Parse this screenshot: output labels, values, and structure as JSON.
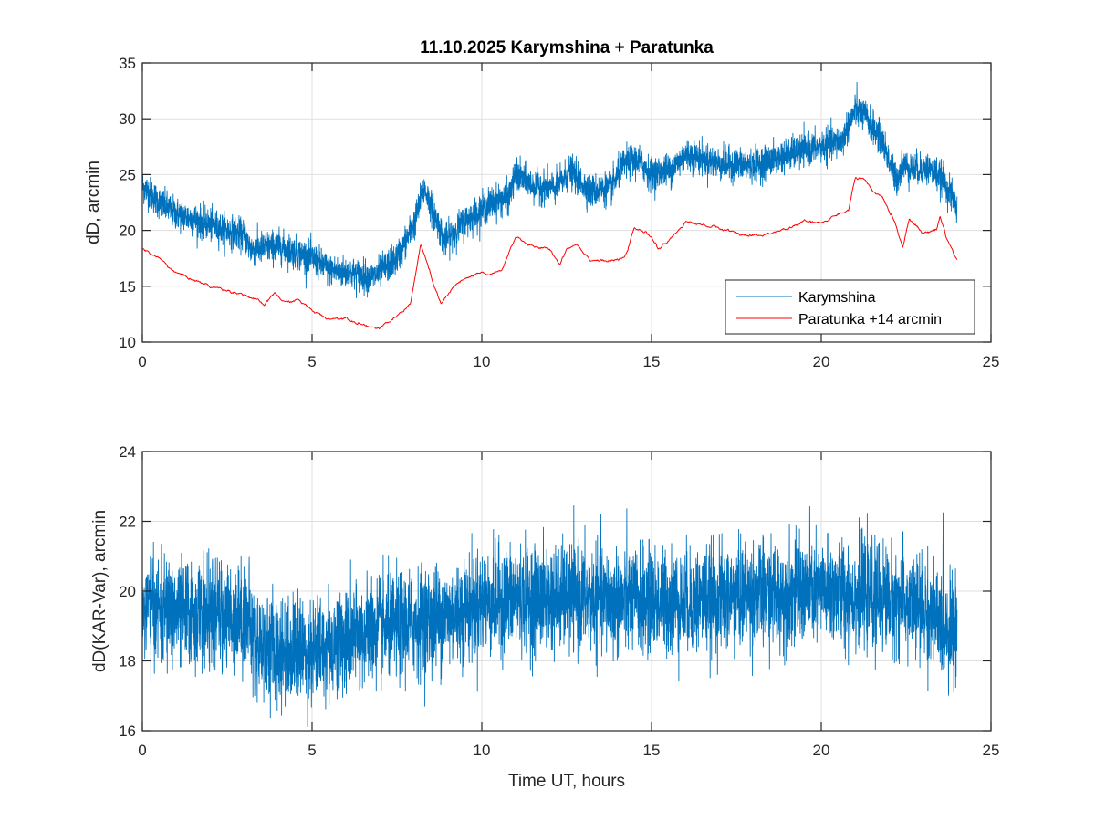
{
  "chart_data": [
    {
      "type": "line",
      "title": "11.10.2025  Karymshina + Paratunka",
      "xlabel": "",
      "ylabel": "dD, arcmin",
      "xlim": [
        0,
        25
      ],
      "ylim": [
        10,
        35
      ],
      "xticks": [
        "0",
        "5",
        "10",
        "15",
        "20",
        "25"
      ],
      "yticks": [
        "10",
        "15",
        "20",
        "25",
        "30",
        "35"
      ],
      "grid": true,
      "legend_position": "bottom-right",
      "series": [
        {
          "name": "Karymshina",
          "color": "#0072BD",
          "noise_amplitude": 1.3,
          "x": [
            0,
            0.5,
            1,
            2,
            3,
            3.2,
            4,
            5,
            5.5,
            6,
            6.8,
            7.5,
            8.0,
            8.3,
            8.6,
            8.9,
            9.5,
            10.3,
            10.8,
            11.0,
            11.5,
            12.2,
            12.6,
            13.2,
            13.8,
            14.2,
            14.6,
            15.0,
            15.6,
            16.0,
            17.0,
            18.0,
            19.0,
            20.0,
            20.6,
            21.0,
            21.3,
            21.8,
            22.2,
            22.4,
            22.8,
            23.2,
            23.6,
            24.0
          ],
          "y": [
            24.0,
            22.5,
            21.5,
            20.5,
            19.5,
            18.3,
            18.6,
            17.5,
            16.5,
            16.2,
            15.8,
            17.5,
            20.5,
            23.8,
            21.5,
            19.0,
            20.8,
            22.5,
            23.0,
            25.0,
            24.0,
            23.8,
            25.3,
            23.5,
            23.8,
            26.0,
            26.3,
            25.0,
            25.5,
            26.8,
            26.0,
            25.8,
            26.8,
            27.5,
            28.0,
            30.8,
            30.2,
            28.0,
            24.5,
            25.8,
            25.5,
            25.5,
            24.5,
            22.0
          ]
        },
        {
          "name": "Paratunka +14 arcmin",
          "color": "#FF0000",
          "noise_amplitude": 0.12,
          "x": [
            0,
            0.5,
            1.0,
            2.0,
            3.0,
            3.6,
            3.9,
            4.2,
            4.6,
            5.0,
            5.5,
            6.0,
            6.5,
            7.0,
            7.5,
            7.9,
            8.2,
            8.4,
            8.6,
            8.8,
            9.2,
            9.5,
            10.0,
            10.3,
            10.6,
            11.0,
            11.5,
            12.0,
            12.3,
            12.5,
            12.8,
            13.2,
            13.8,
            14.2,
            14.5,
            15.0,
            15.2,
            15.5,
            16.0,
            17.0,
            17.5,
            18.0,
            19.0,
            19.5,
            20.0,
            20.5,
            20.8,
            21.0,
            21.3,
            21.5,
            21.8,
            22.2,
            22.4,
            22.6,
            23.0,
            23.4,
            23.5,
            23.7,
            24.0
          ],
          "y": [
            18.3,
            17.5,
            16.2,
            15.0,
            14.3,
            13.3,
            14.4,
            13.5,
            13.8,
            12.8,
            12.1,
            12.2,
            11.6,
            11.2,
            12.3,
            13.5,
            18.7,
            17.0,
            14.8,
            13.5,
            15.0,
            15.6,
            16.2,
            16.0,
            16.5,
            19.5,
            18.5,
            18.3,
            17.0,
            18.4,
            18.8,
            17.4,
            17.2,
            17.5,
            20.2,
            19.5,
            18.3,
            19.0,
            20.8,
            20.2,
            19.8,
            19.4,
            20.1,
            20.8,
            20.6,
            21.5,
            21.8,
            24.7,
            24.5,
            23.4,
            23.0,
            20.5,
            18.5,
            21.2,
            19.7,
            20.1,
            21.3,
            19.3,
            17.4
          ]
        }
      ]
    },
    {
      "type": "line",
      "title": "",
      "xlabel": "Time UT, hours",
      "ylabel": "dD(KAR-Var), arcmin",
      "xlim": [
        0,
        25
      ],
      "ylim": [
        16,
        24
      ],
      "xticks": [
        "0",
        "5",
        "10",
        "15",
        "20",
        "25"
      ],
      "yticks": [
        "16",
        "18",
        "20",
        "22",
        "24"
      ],
      "grid": true,
      "series": [
        {
          "name": "dD(KAR-Var)",
          "color": "#0072BD",
          "noise_amplitude": 1.35,
          "x": [
            0,
            1,
            2,
            3,
            3.15,
            3.25,
            4,
            5,
            6,
            7,
            8,
            9,
            9.6,
            10,
            11,
            12,
            13,
            14,
            15,
            16,
            17,
            18,
            19,
            20,
            21,
            22,
            23,
            23.5,
            24
          ],
          "y": [
            19.5,
            19.4,
            19.3,
            19.3,
            19.2,
            18.6,
            18.3,
            18.3,
            18.6,
            18.9,
            19.1,
            19.3,
            19.5,
            19.7,
            19.8,
            19.8,
            19.8,
            19.7,
            19.7,
            19.7,
            19.8,
            19.9,
            19.9,
            20.0,
            19.9,
            19.8,
            19.5,
            19.1,
            18.9
          ]
        }
      ]
    }
  ]
}
